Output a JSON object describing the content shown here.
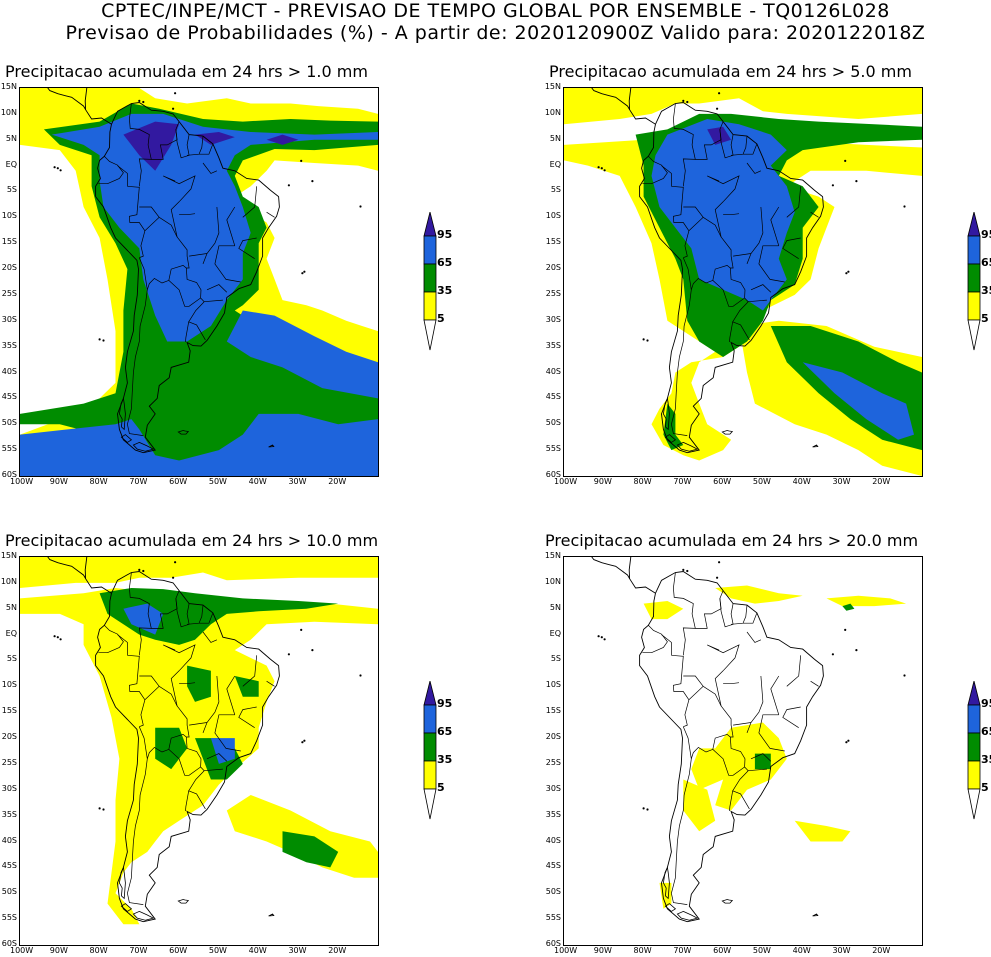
{
  "header": {
    "line1": "CPTEC/INPE/MCT - PREVISAO DE TEMPO GLOBAL POR ENSEMBLE - TQ0126L028",
    "line2": "Previsao de Probabilidades (%) -  A partir de: 2020120900Z  Valido para: 2020122018Z"
  },
  "colors": {
    "c5": "#ffff00",
    "c35": "#008c00",
    "c65": "#1e64dc",
    "c95": "#3219a0",
    "coast": "#000000"
  },
  "lat_labels": [
    "15N",
    "10N",
    "5N",
    "EQ",
    "5S",
    "10S",
    "15S",
    "20S",
    "25S",
    "30S",
    "35S",
    "40S",
    "45S",
    "50S",
    "55S",
    "60S"
  ],
  "lon_labels": [
    "100W",
    "90W",
    "80W",
    "70W",
    "60W",
    "50W",
    "40W",
    "30W",
    "20W"
  ],
  "colorbar_labels": [
    "95",
    "65",
    "35",
    "5"
  ],
  "panels": [
    {
      "title": "Precipitacao acumulada em 24 hrs > 1.0 mm",
      "threshold_mm": 1.0
    },
    {
      "title": "Precipitacao acumulada em 24 hrs > 5.0 mm",
      "threshold_mm": 5.0
    },
    {
      "title": "Precipitacao acumulada em 24 hrs > 10.0 mm",
      "threshold_mm": 10.0
    },
    {
      "title": "Precipitacao acumulada em 24 hrs > 20.0 mm",
      "threshold_mm": 20.0
    }
  ]
}
